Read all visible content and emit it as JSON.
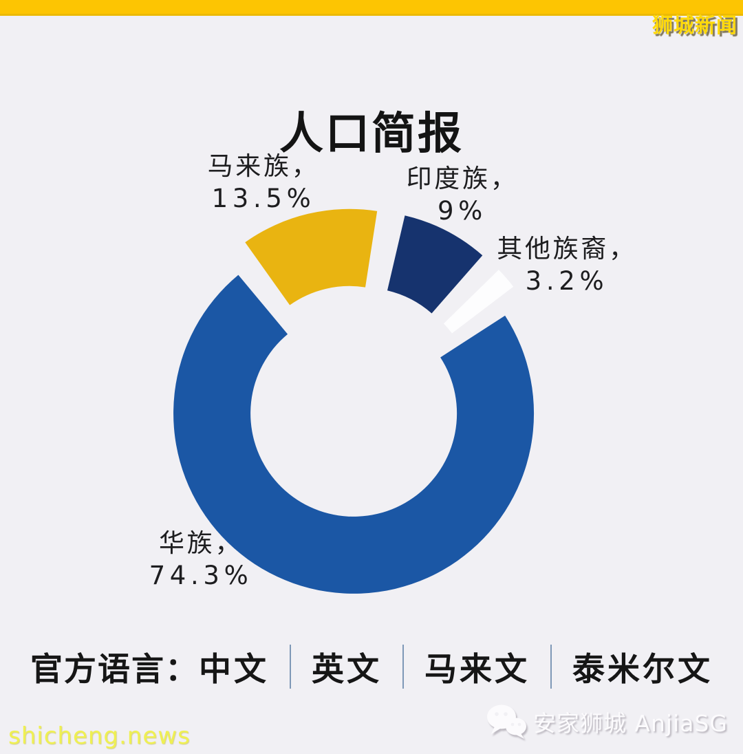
{
  "header": {
    "top_bar_color": "#fdc502",
    "logo_text": "狮城新闻"
  },
  "title": "人口简报",
  "chart_data": {
    "type": "pie",
    "subtype": "donut",
    "title": "人口简报",
    "unit": "%",
    "start_angle_deg_from_top": 11,
    "direction": "clockwise",
    "slices": [
      {
        "name": "印度族",
        "value": 9,
        "label_name": "印度族，",
        "label_value": "9%",
        "color": "#16336e"
      },
      {
        "name": "其他族裔",
        "value": 3.2,
        "label_name": "其他族裔，",
        "label_value": "3.2%",
        "color": "#fdfdfe"
      },
      {
        "name": "华族",
        "value": 74.3,
        "label_name": "华族，",
        "label_value": "74.3%",
        "color": "#1b57a5"
      },
      {
        "name": "马来族",
        "value": 13.5,
        "label_name": "马来族，",
        "label_value": "13.5%",
        "color": "#e9b411"
      }
    ]
  },
  "footer": {
    "languages_label": "官方语言：",
    "languages": [
      "中文",
      "英文",
      "马来文",
      "泰米尔文"
    ],
    "site": "shicheng.news",
    "watermark": "安家狮城 AnjiaSG",
    "divider_color": "#7e98b7"
  }
}
